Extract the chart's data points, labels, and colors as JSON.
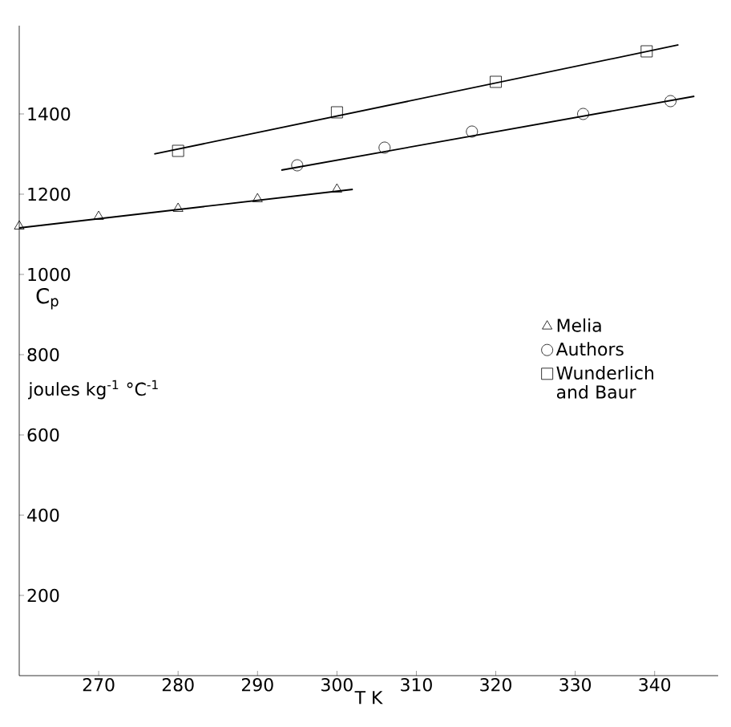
{
  "chart_data": {
    "type": "scatter",
    "xlabel": "T K",
    "ylabel": "C$_{p}$",
    "annotations": [
      "joules kg$^{-1}$ °C$^{-1}$"
    ],
    "xlim": [
      260,
      348
    ],
    "ylim": [
      0,
      1620
    ],
    "xticks": [
      270,
      280,
      290,
      300,
      310,
      320,
      330,
      340
    ],
    "yticks": [
      200,
      400,
      600,
      800,
      1000,
      1200,
      1400
    ],
    "legend": "right",
    "grid": false,
    "series": [
      {
        "name": "Melia",
        "color": "#000000",
        "marker": "triangle",
        "x": [
          260,
          270,
          280,
          290,
          300
        ],
        "values": [
          1120,
          1144,
          1164,
          1188,
          1212
        ]
      },
      {
        "name": "Authors",
        "color": "#000000",
        "marker": "circle",
        "x": [
          295,
          306,
          317,
          331,
          342
        ],
        "values": [
          1272,
          1316,
          1356,
          1400,
          1432
        ]
      },
      {
        "name": "Wunderlich and Baur",
        "color": "#000000",
        "marker": "square",
        "x": [
          280,
          300,
          320,
          339
        ],
        "values": [
          1308,
          1404,
          1480,
          1556
        ]
      },
      {
        "type": "line",
        "color": "#000000",
        "marker": "none",
        "line_style": "solid",
        "x": [
          260,
          302
        ],
        "values": [
          1116,
          1212
        ]
      },
      {
        "type": "line",
        "color": "#000000",
        "marker": "none",
        "line_style": "solid",
        "x": [
          293,
          345
        ],
        "values": [
          1260,
          1444
        ]
      },
      {
        "type": "line",
        "color": "#000000",
        "marker": "none",
        "line_style": "solid",
        "x": [
          277,
          343
        ],
        "values": [
          1300,
          1572
        ]
      }
    ]
  }
}
